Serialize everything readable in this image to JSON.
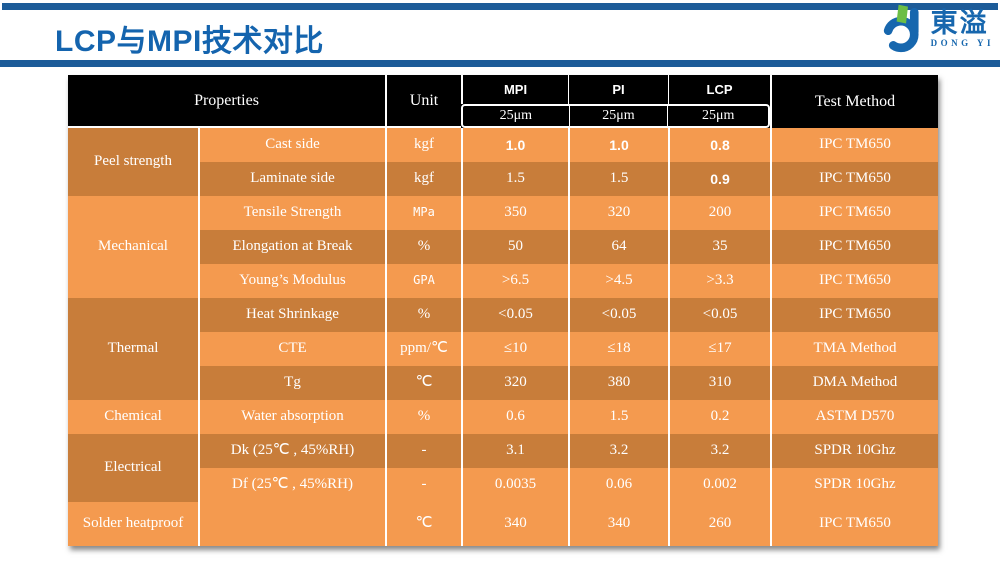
{
  "slide": {
    "title": "LCP与MPI技术对比"
  },
  "logo": {
    "name_cn": "東溢",
    "name_en": "DONG YI"
  },
  "colors": {
    "bar_blue": "#1D5C99",
    "title_blue": "#1464AE",
    "header_black": "#000000",
    "row_light": "#F49A4F",
    "row_dark": "#C87D3A",
    "logo_blue": "#1767AE",
    "logo_green": "#6CBE45",
    "text_white": "#FFFFFF"
  },
  "table": {
    "header": {
      "properties": "Properties",
      "unit": "Unit",
      "materials": [
        "MPI",
        "PI",
        "LCP"
      ],
      "thickness": [
        "25μm",
        "25μm",
        "25μm"
      ],
      "test_method": "Test Method"
    },
    "groups": [
      {
        "label": "Peel strength",
        "span": 2,
        "shade": "dark"
      },
      {
        "label": "Mechanical",
        "span": 3,
        "shade": "light"
      },
      {
        "label": "Thermal",
        "span": 3,
        "shade": "dark"
      },
      {
        "label": "Chemical",
        "span": 1,
        "shade": "light"
      },
      {
        "label": "Electrical",
        "span": 2,
        "shade": "dark"
      },
      {
        "label": "Solder heatproof",
        "span": 1,
        "shade": "light"
      }
    ],
    "rows": [
      {
        "property": "Cast side",
        "unit": "kgf",
        "mpi": "1.0",
        "pi": "1.0",
        "lcp": "0.8",
        "method": "IPC TM650",
        "shade": "light",
        "emphasis": [
          "mpi",
          "pi",
          "lcp"
        ]
      },
      {
        "property": "Laminate side",
        "unit": "kgf",
        "mpi": "1.5",
        "pi": "1.5",
        "lcp": "0.9",
        "method": "IPC TM650",
        "shade": "dark",
        "emphasis": [
          "lcp"
        ]
      },
      {
        "property": "Tensile Strength",
        "unit": "MPa",
        "mpi": "350",
        "pi": "320",
        "lcp": "200",
        "method": "IPC TM650",
        "shade": "light",
        "emphasis": []
      },
      {
        "property": "Elongation at Break",
        "unit": "%",
        "mpi": "50",
        "pi": "64",
        "lcp": "35",
        "method": "IPC TM650",
        "shade": "dark",
        "emphasis": []
      },
      {
        "property": "Young’s Modulus",
        "unit": "GPA",
        "mpi": ">6.5",
        "pi": ">4.5",
        "lcp": ">3.3",
        "method": "IPC TM650",
        "shade": "light",
        "emphasis": []
      },
      {
        "property": "Heat Shrinkage",
        "unit": "%",
        "mpi": "<0.05",
        "pi": "<0.05",
        "lcp": "<0.05",
        "method": "IPC TM650",
        "shade": "dark",
        "emphasis": []
      },
      {
        "property": "CTE",
        "unit": "ppm/℃",
        "mpi": "≤10",
        "pi": "≤18",
        "lcp": "≤17",
        "method": "TMA Method",
        "shade": "light",
        "emphasis": []
      },
      {
        "property": "Tg",
        "unit": "℃",
        "mpi": "320",
        "pi": "380",
        "lcp": "310",
        "method": "DMA Method",
        "shade": "dark",
        "emphasis": []
      },
      {
        "property": "Water absorption",
        "unit": "%",
        "mpi": "0.6",
        "pi": "1.5",
        "lcp": "0.2",
        "method": "ASTM D570",
        "shade": "light",
        "emphasis": []
      },
      {
        "property": "Dk (25℃ , 45%RH)",
        "unit": "-",
        "mpi": "3.1",
        "pi": "3.2",
        "lcp": "3.2",
        "method": "SPDR 10Ghz",
        "shade": "dark",
        "emphasis": []
      },
      {
        "property": "Df (25℃ , 45%RH)",
        "unit": "-",
        "mpi": "0.0035",
        "pi": "0.06",
        "lcp": "0.002",
        "method": "SPDR 10Ghz",
        "shade": "light",
        "emphasis": []
      },
      {
        "property": "",
        "unit": "℃",
        "mpi": "340",
        "pi": "340",
        "lcp": "260",
        "method": "IPC TM650",
        "shade": "light",
        "emphasis": []
      }
    ]
  }
}
